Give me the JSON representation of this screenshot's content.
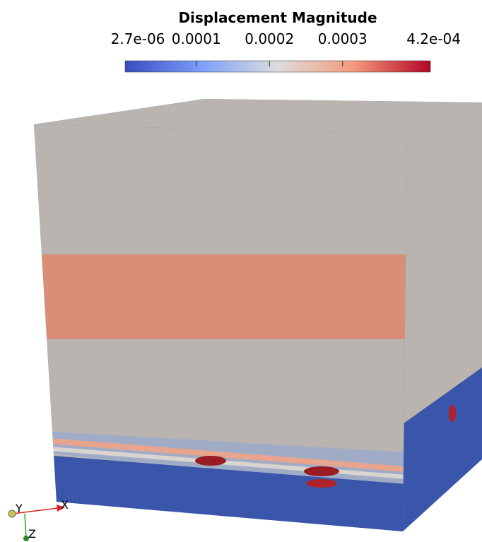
{
  "colorbar": {
    "title": "Displacement Magnitude",
    "range": [
      {
        "value": 2.7e-06,
        "label": "2.7e-06"
      },
      {
        "value": 0.00042,
        "label": "4.2e-04"
      }
    ],
    "ticks": [
      0.0001,
      0.0002,
      0.0003
    ]
  },
  "axes": {
    "x": "X",
    "y": "Y",
    "z": "Z"
  }
}
